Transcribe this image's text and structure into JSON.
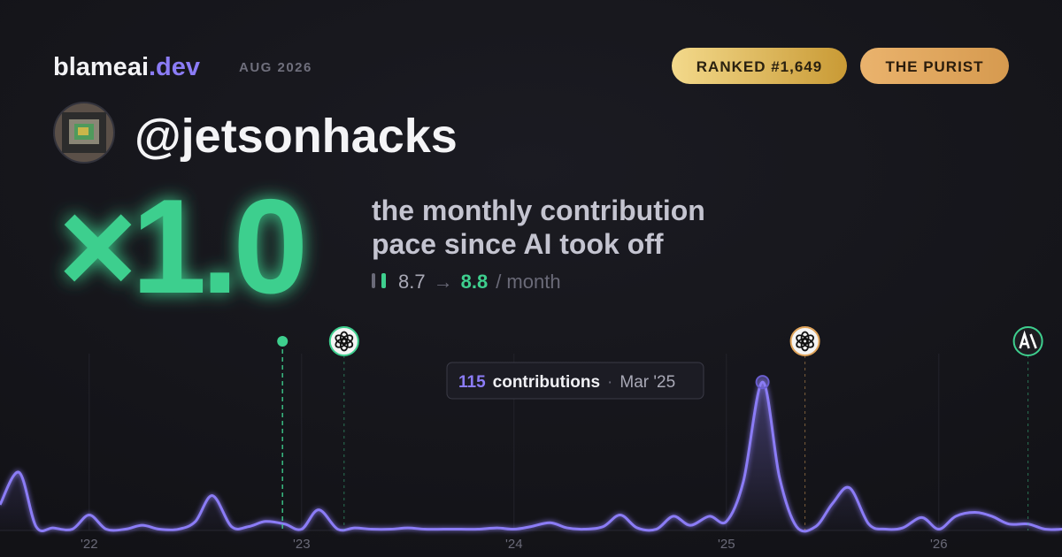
{
  "header": {
    "brand": "blameai",
    "brand_suffix": ".dev",
    "date": "AUG 2026",
    "rank": "RANKED #1,649",
    "badge": "THE PURIST"
  },
  "profile": {
    "handle": "@jetsonhacks"
  },
  "hero": {
    "multiplier": "×1.0",
    "line1": "the monthly contribution",
    "line2": "pace since AI took off",
    "before": "8.7",
    "arrow": "→",
    "after": "8.8",
    "unit": "/ month"
  },
  "chart_data": {
    "type": "line",
    "x": [
      2021.58,
      2021.67,
      2021.75,
      2021.83,
      2021.92,
      2022.0,
      2022.08,
      2022.17,
      2022.25,
      2022.33,
      2022.42,
      2022.5,
      2022.58,
      2022.67,
      2022.75,
      2022.83,
      2022.92,
      2023.0,
      2023.08,
      2023.17,
      2023.25,
      2023.33,
      2023.42,
      2023.5,
      2023.58,
      2023.67,
      2023.75,
      2023.83,
      2023.92,
      2024.0,
      2024.08,
      2024.17,
      2024.25,
      2024.33,
      2024.42,
      2024.5,
      2024.58,
      2024.67,
      2024.75,
      2024.83,
      2024.92,
      2025.0,
      2025.08,
      2025.17,
      2025.25,
      2025.33,
      2025.42,
      2025.5,
      2025.58,
      2025.67,
      2025.75,
      2025.83,
      2025.92,
      2026.0,
      2026.08,
      2026.17,
      2026.25,
      2026.33,
      2026.42,
      2026.5,
      2026.58
    ],
    "series": [
      {
        "name": "contributions",
        "color": "#8b7cf6",
        "values": [
          20,
          45,
          3,
          2,
          1,
          12,
          1,
          1,
          4,
          1,
          1,
          7,
          27,
          3,
          3,
          7,
          5,
          1,
          16,
          1,
          2,
          1,
          1,
          2,
          1,
          1,
          1,
          1,
          2,
          1,
          3,
          6,
          2,
          1,
          3,
          12,
          2,
          1,
          11,
          4,
          11,
          7,
          38,
          115,
          41,
          3,
          3,
          21,
          33,
          5,
          1,
          2,
          10,
          1,
          11,
          14,
          11,
          5,
          5,
          1,
          1
        ]
      }
    ],
    "xlim": [
      2021.58,
      2026.58
    ],
    "ylim": [
      0,
      137
    ],
    "xticks": [
      {
        "value": 2022,
        "label": "'22"
      },
      {
        "value": 2023,
        "label": "'23"
      },
      {
        "value": 2024,
        "label": "'24"
      },
      {
        "value": 2025,
        "label": "'25"
      },
      {
        "value": 2026,
        "label": "'26"
      }
    ],
    "grid": true,
    "events": [
      {
        "x": 2022.91,
        "icon": "dot",
        "color": "#3ecf8e"
      },
      {
        "x": 2023.2,
        "icon": "openai",
        "color": "#3ecf8e"
      },
      {
        "x": 2025.37,
        "icon": "openai",
        "color": "#e0a45a"
      },
      {
        "x": 2026.42,
        "icon": "anthropic",
        "color": "#3ecf8e"
      }
    ],
    "tooltip": {
      "point": 43,
      "unit": "contributions",
      "separator": "·",
      "date": "Mar '25"
    }
  }
}
